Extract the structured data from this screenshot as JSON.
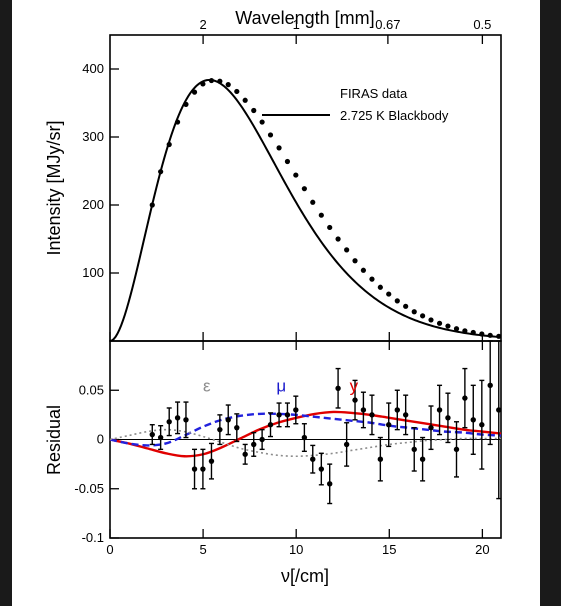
{
  "chart_data": {
    "type": "line",
    "top_axis": {
      "label": "Wavelength [mm]",
      "ticks": [
        {
          "label": "2",
          "nu": 5.0
        },
        {
          "label": "1",
          "nu": 10.0
        },
        {
          "label": "0.67",
          "nu": 14.925
        },
        {
          "label": "0.5",
          "nu": 20.0
        }
      ]
    },
    "xlabel": "ν[/cm]",
    "xlim": [
      0,
      21
    ],
    "xticks": [
      "0",
      "5",
      "10",
      "15",
      "20"
    ],
    "upper": {
      "ylabel": "Intensity [MJy/sr]",
      "ylim": [
        0,
        450
      ],
      "yticks": [
        "100",
        "200",
        "300",
        "400"
      ],
      "legend": {
        "title": "FIRAS data",
        "entry": "2.725 K Blackbody",
        "placement": "top-right"
      },
      "blackbody_temperature_K": 2.725,
      "firas_points": {
        "x": [
          2.27,
          2.72,
          3.18,
          3.63,
          4.08,
          4.54,
          4.99,
          5.45,
          5.9,
          6.35,
          6.81,
          7.26,
          7.72,
          8.17,
          8.62,
          9.08,
          9.53,
          9.98,
          10.44,
          10.89,
          11.35,
          11.8,
          12.25,
          12.71,
          13.16,
          13.61,
          14.07,
          14.52,
          14.97,
          15.43,
          15.88,
          16.34,
          16.79,
          17.24,
          17.7,
          18.15,
          18.61,
          19.06,
          19.51,
          19.97,
          20.42,
          20.88
        ],
        "y": [
          200,
          249,
          289,
          322,
          348,
          366,
          378,
          383,
          382,
          377,
          367,
          354,
          339,
          322,
          303,
          284,
          264,
          244,
          224,
          204,
          185,
          167,
          150,
          134,
          118,
          104,
          91,
          79,
          69,
          59,
          51,
          43,
          37,
          31,
          26,
          22,
          18,
          15,
          12.5,
          10.3,
          8.4,
          6.9
        ]
      }
    },
    "lower": {
      "ylabel": "Residual",
      "ylim": [
        -0.1,
        0.1
      ],
      "yticks": [
        "-0.1",
        "-0.05",
        "0",
        "0.05"
      ],
      "annotations": [
        {
          "text": "ε",
          "color": "#8c8c8c",
          "x": 5.2,
          "y": 0.055
        },
        {
          "text": "μ",
          "color": "#1a1acc",
          "x": 9.2,
          "y": 0.055
        },
        {
          "text": "y",
          "color": "#e00000",
          "x": 13.1,
          "y": 0.055
        }
      ],
      "residual_points": {
        "x": [
          2.27,
          2.72,
          3.18,
          3.63,
          4.08,
          4.54,
          4.99,
          5.45,
          5.9,
          6.35,
          6.81,
          7.26,
          7.72,
          8.17,
          8.62,
          9.08,
          9.53,
          9.98,
          10.44,
          10.89,
          11.35,
          11.8,
          12.25,
          12.71,
          13.16,
          13.61,
          14.07,
          14.52,
          14.97,
          15.43,
          15.88,
          16.34,
          16.79,
          17.24,
          17.7,
          18.15,
          18.61,
          19.06,
          19.51,
          19.97,
          20.42,
          20.88
        ],
        "y": [
          0.005,
          0.002,
          0.018,
          0.022,
          0.02,
          -0.03,
          -0.03,
          -0.022,
          0.01,
          0.02,
          0.012,
          -0.015,
          -0.005,
          0.0,
          0.015,
          0.025,
          0.025,
          0.03,
          0.002,
          -0.02,
          -0.03,
          -0.045,
          0.052,
          -0.005,
          0.04,
          0.03,
          0.025,
          -0.02,
          0.015,
          0.03,
          0.025,
          -0.01,
          -0.02,
          0.012,
          0.03,
          0.022,
          -0.01,
          0.042,
          0.02,
          0.015,
          0.055,
          0.03
        ],
        "err": [
          0.01,
          0.012,
          0.014,
          0.016,
          0.018,
          0.02,
          0.02,
          0.018,
          0.015,
          0.015,
          0.014,
          0.01,
          0.012,
          0.01,
          0.012,
          0.012,
          0.012,
          0.014,
          0.014,
          0.014,
          0.016,
          0.02,
          0.02,
          0.022,
          0.02,
          0.018,
          0.02,
          0.022,
          0.022,
          0.02,
          0.02,
          0.022,
          0.022,
          0.022,
          0.025,
          0.025,
          0.028,
          0.03,
          0.035,
          0.045,
          0.06,
          0.09
        ]
      },
      "distortion_curves": [
        {
          "name": "y",
          "color": "#e00000",
          "style": "solid",
          "x": [
            0,
            1,
            2,
            3,
            4,
            5,
            6,
            7,
            8,
            9,
            10,
            11,
            12,
            13,
            14,
            15,
            16,
            17,
            18,
            19,
            20,
            21
          ],
          "y": [
            0.0,
            -0.004,
            -0.009,
            -0.014,
            -0.017,
            -0.015,
            -0.008,
            0.001,
            0.01,
            0.017,
            0.022,
            0.026,
            0.028,
            0.027,
            0.025,
            0.022,
            0.019,
            0.016,
            0.013,
            0.01,
            0.008,
            0.006
          ]
        },
        {
          "name": "μ",
          "color": "#2222dd",
          "style": "dashed",
          "x": [
            0,
            1,
            2,
            3,
            4,
            5,
            6,
            7,
            8,
            9,
            10,
            11,
            12,
            13,
            14,
            15,
            16,
            17,
            18,
            19,
            20,
            21
          ],
          "y": [
            0.0,
            -0.004,
            -0.006,
            -0.004,
            0.004,
            0.013,
            0.02,
            0.024,
            0.026,
            0.026,
            0.025,
            0.023,
            0.021,
            0.019,
            0.017,
            0.014,
            0.012,
            0.01,
            0.008,
            0.007,
            0.005,
            0.004
          ]
        },
        {
          "name": "ε",
          "color": "#8c8c8c",
          "style": "dotted",
          "x": [
            0,
            1,
            2,
            3,
            4,
            5,
            6,
            7,
            8,
            9,
            10,
            11,
            12,
            13,
            14,
            15,
            16,
            17,
            18,
            19,
            20,
            21
          ],
          "y": [
            0.0,
            0.004,
            0.008,
            0.01,
            0.008,
            0.003,
            -0.003,
            -0.009,
            -0.013,
            -0.016,
            -0.017,
            -0.016,
            -0.014,
            -0.011,
            -0.008,
            -0.005,
            -0.003,
            -0.001,
            0.0,
            0.001,
            0.001,
            0.001
          ]
        }
      ]
    }
  }
}
